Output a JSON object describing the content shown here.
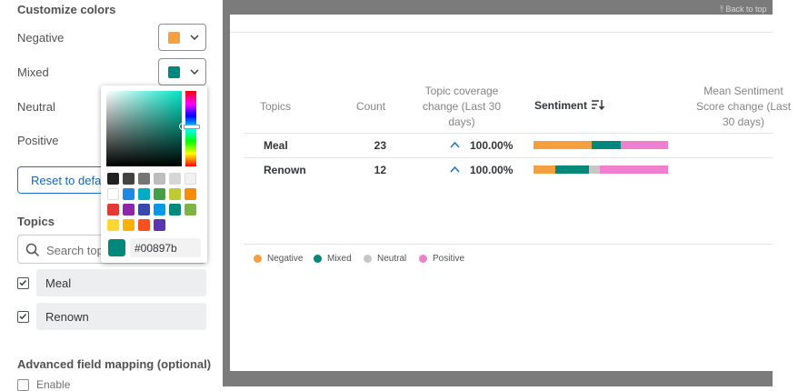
{
  "customize": {
    "title": "Customize colors",
    "rows": [
      {
        "label": "Negative",
        "color": "#f59f3f"
      },
      {
        "label": "Mixed",
        "color": "#00897b"
      },
      {
        "label": "Neutral"
      },
      {
        "label": "Positive"
      }
    ],
    "reset_label": "Reset to default"
  },
  "topics": {
    "title": "Topics",
    "search_placeholder": "Search topics",
    "items": [
      {
        "label": "Meal",
        "checked": true
      },
      {
        "label": "Renown",
        "checked": true
      }
    ]
  },
  "advanced": {
    "title": "Advanced field mapping (optional)",
    "enable_label": "Enable"
  },
  "color_picker": {
    "hex": "#00897b",
    "swatches": [
      "#212121",
      "#424242",
      "#757575",
      "#bdbdbd",
      "#d6d6d6",
      "#f2f2f2",
      "#ffffff",
      "#1e88e5",
      "#00acc1",
      "#43a047",
      "#c0ca33",
      "#fb8c00",
      "#e53935",
      "#8e24aa",
      "#3949ab",
      "#039be5",
      "#00897b",
      "#7cb342",
      "#fdd835",
      "#ffb300",
      "#f4511e",
      "#5e35b1"
    ]
  },
  "back_to_top": "⤒ Back to top",
  "table": {
    "headers": {
      "topics": "Topics",
      "count": "Count",
      "coverage": [
        "Topic coverage",
        "change (Last 30",
        "days)"
      ],
      "sentiment": "Sentiment",
      "mean": [
        "Mean Sentiment",
        "Score change (Last",
        "30 days)"
      ]
    },
    "rows": [
      {
        "topic": "Meal",
        "count": "23",
        "change": "100.00%",
        "sentiment": {
          "negative": 0.43,
          "mixed": 0.22,
          "neutral": 0.0,
          "positive": 0.35
        }
      },
      {
        "topic": "Renown",
        "count": "12",
        "change": "100.00%",
        "sentiment": {
          "negative": 0.16,
          "mixed": 0.25,
          "neutral": 0.08,
          "positive": 0.51
        }
      }
    ]
  },
  "legend": [
    {
      "label": "Negative",
      "color": "#f59f3f"
    },
    {
      "label": "Mixed",
      "color": "#00897b"
    },
    {
      "label": "Neutral",
      "color": "#c7c7c7"
    },
    {
      "label": "Positive",
      "color": "#f07fd0"
    }
  ]
}
